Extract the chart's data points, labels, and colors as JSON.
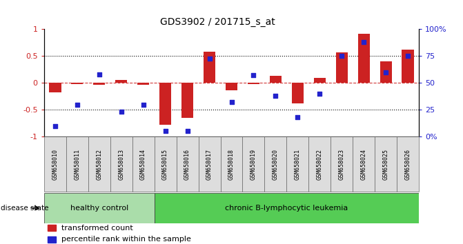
{
  "title": "GDS3902 / 201715_s_at",
  "samples": [
    "GSM658010",
    "GSM658011",
    "GSM658012",
    "GSM658013",
    "GSM658014",
    "GSM658015",
    "GSM658016",
    "GSM658017",
    "GSM658018",
    "GSM658019",
    "GSM658020",
    "GSM658021",
    "GSM658022",
    "GSM658023",
    "GSM658024",
    "GSM658025",
    "GSM658026"
  ],
  "bar_values": [
    -0.17,
    -0.02,
    -0.03,
    0.05,
    -0.03,
    -0.78,
    -0.65,
    0.58,
    -0.14,
    -0.02,
    0.13,
    -0.38,
    0.1,
    0.57,
    0.92,
    0.4,
    0.62
  ],
  "dot_values": [
    10,
    30,
    58,
    23,
    30,
    5,
    5,
    73,
    32,
    57,
    38,
    18,
    40,
    75,
    88,
    60,
    75
  ],
  "healthy_count": 5,
  "disease_label": "disease state",
  "healthy_label": "healthy control",
  "leukemia_label": "chronic B-lymphocytic leukemia",
  "bar_color": "#cc2222",
  "dot_color": "#2222cc",
  "bar_legend": "transformed count",
  "dot_legend": "percentile rank within the sample",
  "ylim_left": [
    -1,
    1
  ],
  "ylim_right": [
    0,
    100
  ],
  "yticks_left": [
    -1,
    -0.5,
    0,
    0.5,
    1
  ],
  "ytick_labels_left": [
    "-1",
    "-0.5",
    "0",
    "0.5",
    "1"
  ],
  "yticks_right": [
    0,
    25,
    50,
    75,
    100
  ],
  "ytick_labels_right": [
    "0%",
    "25",
    "50",
    "75",
    "100%"
  ],
  "healthy_color": "#aaddaa",
  "leukemia_color": "#55cc55",
  "bar_width": 0.55,
  "background_color": "#ffffff",
  "chart_bg": "#ffffff"
}
